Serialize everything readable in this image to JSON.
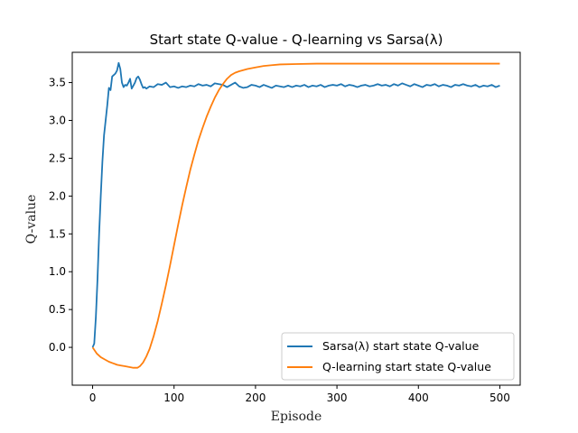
{
  "chart_data": {
    "type": "line",
    "title": "Start state Q-value - Q-learning vs Sarsa(λ)",
    "xlabel": "Episode",
    "ylabel": "Q-value",
    "xlim": [
      -25,
      525
    ],
    "ylim": [
      -0.5,
      3.9
    ],
    "x_ticks": [
      0,
      100,
      200,
      300,
      400,
      500
    ],
    "y_ticks": [
      0.0,
      0.5,
      1.0,
      1.5,
      2.0,
      2.5,
      3.0,
      3.5
    ],
    "x_tick_labels": [
      "0",
      "100",
      "200",
      "300",
      "400",
      "500"
    ],
    "y_tick_labels": [
      "0.0",
      "0.5",
      "1.0",
      "1.5",
      "2.0",
      "2.5",
      "3.0",
      "3.5"
    ],
    "grid": false,
    "legend_position": "lower-right",
    "series": [
      {
        "name": "Sarsa(λ) start state Q-value",
        "color": "#1f77b4",
        "points": [
          [
            0,
            0.0
          ],
          [
            2,
            0.05
          ],
          [
            4,
            0.4
          ],
          [
            6,
            0.9
          ],
          [
            8,
            1.5
          ],
          [
            10,
            2.0
          ],
          [
            12,
            2.45
          ],
          [
            14,
            2.8
          ],
          [
            16,
            3.0
          ],
          [
            18,
            3.2
          ],
          [
            20,
            3.43
          ],
          [
            22,
            3.4
          ],
          [
            24,
            3.58
          ],
          [
            26,
            3.6
          ],
          [
            28,
            3.62
          ],
          [
            30,
            3.66
          ],
          [
            32,
            3.76
          ],
          [
            34,
            3.68
          ],
          [
            36,
            3.5
          ],
          [
            38,
            3.44
          ],
          [
            40,
            3.47
          ],
          [
            42,
            3.46
          ],
          [
            44,
            3.5
          ],
          [
            46,
            3.55
          ],
          [
            48,
            3.42
          ],
          [
            50,
            3.46
          ],
          [
            52,
            3.5
          ],
          [
            54,
            3.56
          ],
          [
            56,
            3.58
          ],
          [
            58,
            3.54
          ],
          [
            60,
            3.48
          ],
          [
            62,
            3.43
          ],
          [
            64,
            3.44
          ],
          [
            66,
            3.42
          ],
          [
            70,
            3.45
          ],
          [
            75,
            3.44
          ],
          [
            80,
            3.48
          ],
          [
            85,
            3.47
          ],
          [
            90,
            3.5
          ],
          [
            95,
            3.44
          ],
          [
            100,
            3.45
          ],
          [
            105,
            3.43
          ],
          [
            110,
            3.45
          ],
          [
            115,
            3.44
          ],
          [
            120,
            3.46
          ],
          [
            125,
            3.45
          ],
          [
            130,
            3.48
          ],
          [
            135,
            3.46
          ],
          [
            140,
            3.47
          ],
          [
            145,
            3.45
          ],
          [
            150,
            3.49
          ],
          [
            155,
            3.48
          ],
          [
            160,
            3.47
          ],
          [
            165,
            3.44
          ],
          [
            170,
            3.47
          ],
          [
            175,
            3.5
          ],
          [
            180,
            3.45
          ],
          [
            185,
            3.43
          ],
          [
            190,
            3.44
          ],
          [
            195,
            3.47
          ],
          [
            200,
            3.46
          ],
          [
            205,
            3.44
          ],
          [
            210,
            3.47
          ],
          [
            215,
            3.45
          ],
          [
            220,
            3.43
          ],
          [
            225,
            3.46
          ],
          [
            230,
            3.45
          ],
          [
            235,
            3.44
          ],
          [
            240,
            3.46
          ],
          [
            245,
            3.44
          ],
          [
            250,
            3.46
          ],
          [
            255,
            3.45
          ],
          [
            260,
            3.47
          ],
          [
            265,
            3.44
          ],
          [
            270,
            3.46
          ],
          [
            275,
            3.45
          ],
          [
            280,
            3.47
          ],
          [
            285,
            3.44
          ],
          [
            290,
            3.46
          ],
          [
            295,
            3.47
          ],
          [
            300,
            3.46
          ],
          [
            305,
            3.48
          ],
          [
            310,
            3.45
          ],
          [
            315,
            3.47
          ],
          [
            320,
            3.46
          ],
          [
            325,
            3.44
          ],
          [
            330,
            3.46
          ],
          [
            335,
            3.47
          ],
          [
            340,
            3.45
          ],
          [
            345,
            3.46
          ],
          [
            350,
            3.48
          ],
          [
            355,
            3.46
          ],
          [
            360,
            3.47
          ],
          [
            365,
            3.45
          ],
          [
            370,
            3.48
          ],
          [
            375,
            3.46
          ],
          [
            380,
            3.49
          ],
          [
            385,
            3.47
          ],
          [
            390,
            3.45
          ],
          [
            395,
            3.48
          ],
          [
            400,
            3.46
          ],
          [
            405,
            3.44
          ],
          [
            410,
            3.47
          ],
          [
            415,
            3.46
          ],
          [
            420,
            3.48
          ],
          [
            425,
            3.45
          ],
          [
            430,
            3.47
          ],
          [
            435,
            3.46
          ],
          [
            440,
            3.44
          ],
          [
            445,
            3.47
          ],
          [
            450,
            3.46
          ],
          [
            455,
            3.48
          ],
          [
            460,
            3.46
          ],
          [
            465,
            3.45
          ],
          [
            470,
            3.47
          ],
          [
            475,
            3.44
          ],
          [
            480,
            3.46
          ],
          [
            485,
            3.45
          ],
          [
            490,
            3.47
          ],
          [
            495,
            3.44
          ],
          [
            500,
            3.46
          ]
        ]
      },
      {
        "name": "Q-learning start state Q-value",
        "color": "#ff7f0e",
        "points": [
          [
            0,
            0.0
          ],
          [
            5,
            -0.08
          ],
          [
            10,
            -0.13
          ],
          [
            15,
            -0.16
          ],
          [
            20,
            -0.19
          ],
          [
            25,
            -0.21
          ],
          [
            30,
            -0.23
          ],
          [
            35,
            -0.24
          ],
          [
            40,
            -0.25
          ],
          [
            45,
            -0.26
          ],
          [
            50,
            -0.27
          ],
          [
            55,
            -0.27
          ],
          [
            58,
            -0.25
          ],
          [
            62,
            -0.2
          ],
          [
            66,
            -0.12
          ],
          [
            70,
            -0.02
          ],
          [
            75,
            0.15
          ],
          [
            80,
            0.35
          ],
          [
            85,
            0.58
          ],
          [
            90,
            0.82
          ],
          [
            95,
            1.08
          ],
          [
            100,
            1.35
          ],
          [
            105,
            1.62
          ],
          [
            110,
            1.88
          ],
          [
            115,
            2.12
          ],
          [
            120,
            2.35
          ],
          [
            125,
            2.55
          ],
          [
            130,
            2.74
          ],
          [
            135,
            2.9
          ],
          [
            140,
            3.05
          ],
          [
            145,
            3.18
          ],
          [
            150,
            3.3
          ],
          [
            155,
            3.4
          ],
          [
            160,
            3.48
          ],
          [
            165,
            3.55
          ],
          [
            170,
            3.6
          ],
          [
            175,
            3.63
          ],
          [
            180,
            3.65
          ],
          [
            190,
            3.68
          ],
          [
            200,
            3.7
          ],
          [
            210,
            3.72
          ],
          [
            220,
            3.73
          ],
          [
            230,
            3.74
          ],
          [
            250,
            3.745
          ],
          [
            275,
            3.75
          ],
          [
            300,
            3.75
          ],
          [
            350,
            3.75
          ],
          [
            400,
            3.75
          ],
          [
            450,
            3.75
          ],
          [
            500,
            3.75
          ]
        ]
      }
    ]
  }
}
